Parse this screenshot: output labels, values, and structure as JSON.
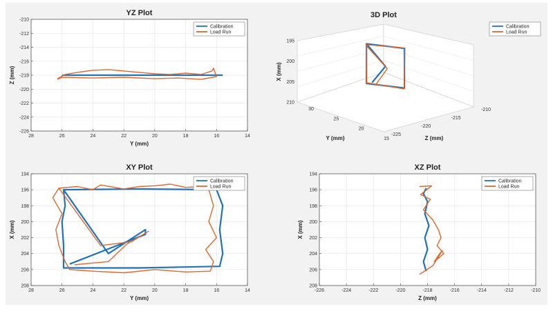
{
  "figure": {
    "background": "#f2f2f2",
    "plot_background": "#ffffff",
    "grid_color": "#e3e3e3"
  },
  "colors": {
    "calibration": "#1f72b8",
    "load_run": "#e0662c"
  },
  "legend": {
    "calibration": "Calibration",
    "load_run": "Load Run"
  },
  "chart_data": [
    {
      "type": "line",
      "title": "YZ Plot",
      "xlabel": "Y (mm)",
      "ylabel": "Z (mm)",
      "xlim": [
        14,
        28
      ],
      "x_reversed": true,
      "ylim": [
        -226,
        -210
      ],
      "y_reversed": false,
      "xticks": [
        "28",
        "26",
        "24",
        "22",
        "20",
        "18",
        "16",
        "14"
      ],
      "yticks": [
        "-210",
        "-212",
        "-214",
        "-216",
        "-218",
        "-220",
        "-222",
        "-224",
        "-226"
      ],
      "grid": true,
      "legend_position": "top-right",
      "series": [
        {
          "name": "Calibration",
          "x": [
            26,
            24,
            22,
            20,
            18,
            16,
            15.6
          ],
          "y": [
            -218.0,
            -218.0,
            -218.0,
            -218.0,
            -218.0,
            -218.0,
            -218.0
          ]
        },
        {
          "name": "Load Run",
          "x": [
            26.3,
            25.8,
            25.0,
            24.0,
            23.0,
            22.0,
            21.0,
            20.0,
            19.0,
            18.0,
            17.0,
            16.3,
            16.2,
            16.0,
            17.0,
            18.5,
            20.0,
            22.0,
            24.0,
            26.0,
            26.3
          ],
          "y": [
            -218.5,
            -217.9,
            -217.6,
            -217.3,
            -217.2,
            -217.4,
            -217.6,
            -217.8,
            -217.9,
            -217.7,
            -217.9,
            -217.4,
            -217.0,
            -218.2,
            -218.6,
            -218.4,
            -218.5,
            -218.3,
            -218.4,
            -218.3,
            -218.6
          ]
        }
      ]
    },
    {
      "type": "line",
      "title": "3D Plot",
      "xlabel": "Y (mm)",
      "ylabel": "Z (mm)",
      "zlabel": "X (mm)",
      "xlim": [
        15,
        30
      ],
      "ylim": [
        -225,
        -210
      ],
      "zlim": [
        195,
        210
      ],
      "z_reversed": true,
      "xticks": [
        "15",
        "20",
        "25",
        "30"
      ],
      "yticks": [
        "-225",
        "-220",
        "-215",
        "-210"
      ],
      "zticks": [
        "195",
        "200",
        "205",
        "210"
      ],
      "grid": true,
      "legend_position": "top-right",
      "series": [
        {
          "name": "Calibration",
          "x": [
            26,
            16,
            16,
            26,
            26,
            21,
            24.5
          ],
          "y": [
            -218,
            -218,
            -218,
            -218,
            -218,
            -218,
            -218
          ],
          "z": [
            196,
            196,
            205.8,
            205.8,
            196,
            201,
            205.4
          ]
        },
        {
          "name": "Load Run",
          "x": [
            26,
            16,
            16,
            26,
            26,
            20.5,
            23.5
          ],
          "y": [
            -218.5,
            -217.5,
            -218.4,
            -217.8,
            -218.3,
            -218,
            -218.2
          ],
          "z": [
            196.2,
            195.9,
            206,
            205.6,
            196.4,
            201.5,
            205.8
          ]
        }
      ]
    },
    {
      "type": "line",
      "title": "XY Plot",
      "xlabel": "Y (mm)",
      "ylabel": "X (mm)",
      "xlim": [
        14,
        28
      ],
      "x_reversed": true,
      "ylim": [
        194,
        208
      ],
      "y_reversed": true,
      "xticks": [
        "28",
        "26",
        "24",
        "22",
        "20",
        "18",
        "16",
        "14"
      ],
      "yticks": [
        "194",
        "196",
        "198",
        "200",
        "202",
        "204",
        "206",
        "208"
      ],
      "grid": true,
      "legend_position": "top-right",
      "series": [
        {
          "name": "Calibration",
          "x": [
            25.9,
            21.0,
            16.0,
            15.6,
            15.8,
            15.6,
            15.8,
            21.0,
            25.9,
            25.9,
            26.0,
            25.8,
            25.9,
            23.0,
            20.6,
            20.6,
            25.5
          ],
          "y": [
            196.0,
            195.9,
            196.0,
            198.0,
            201.0,
            204.0,
            205.6,
            205.8,
            205.8,
            203.0,
            200.0,
            198.0,
            196.0,
            204.0,
            201.0,
            201.6,
            205.3
          ]
        },
        {
          "name": "Load Run",
          "x": [
            26.2,
            25.0,
            24.0,
            23.5,
            22.0,
            21.0,
            20.0,
            19.0,
            18.0,
            17.0,
            16.5,
            16.2,
            16.5,
            16.0,
            16.7,
            16.2,
            16.4,
            18.0,
            20.0,
            22.0,
            24.0,
            25.5,
            25.8,
            26.2,
            26.4,
            26.0,
            26.6,
            26.2,
            23.5,
            21.5,
            20.4,
            21.8,
            23.0,
            25.2
          ],
          "y": [
            195.8,
            195.6,
            196.0,
            195.4,
            195.9,
            195.6,
            195.5,
            195.3,
            195.7,
            195.6,
            196.0,
            198.0,
            200.0,
            202.0,
            203.5,
            205.0,
            206.2,
            206.3,
            206.0,
            206.4,
            206.2,
            206.0,
            205.0,
            203.0,
            201.0,
            199.0,
            197.0,
            195.8,
            203.0,
            202.5,
            201.2,
            202.8,
            205.0,
            205.4
          ]
        }
      ]
    },
    {
      "type": "line",
      "title": "XZ Plot",
      "xlabel": "Z (mm)",
      "ylabel": "X (mm)",
      "xlim": [
        -226,
        -210
      ],
      "x_reversed": false,
      "ylim": [
        194,
        208
      ],
      "y_reversed": true,
      "xticks": [
        "-226",
        "-224",
        "-222",
        "-220",
        "-218",
        "-216",
        "-214",
        "-212",
        "-210"
      ],
      "yticks": [
        "194",
        "196",
        "198",
        "200",
        "202",
        "204",
        "206",
        "208"
      ],
      "grid": true,
      "legend_position": "top-right",
      "series": [
        {
          "name": "Calibration",
          "x": [
            -218.1,
            -218.3,
            -218.0,
            -218.2,
            -217.9,
            -218.2,
            -218.0,
            -218.3,
            -218.1
          ],
          "y": [
            195.8,
            196.5,
            197.5,
            199.0,
            200.5,
            202.0,
            203.5,
            205.0,
            206.2
          ]
        },
        {
          "name": "Load Run",
          "x": [
            -218.6,
            -217.7,
            -218.5,
            -217.8,
            -218.3,
            -217.6,
            -217.2,
            -217.0,
            -217.3,
            -216.8,
            -217.5,
            -217.1,
            -216.9,
            -217.6,
            -218.4,
            -218.6
          ],
          "y": [
            195.6,
            195.5,
            196.6,
            197.2,
            198.5,
            199.8,
            201.0,
            202.0,
            203.0,
            204.0,
            205.0,
            204.0,
            203.6,
            205.5,
            206.4,
            206.6
          ]
        }
      ]
    }
  ]
}
